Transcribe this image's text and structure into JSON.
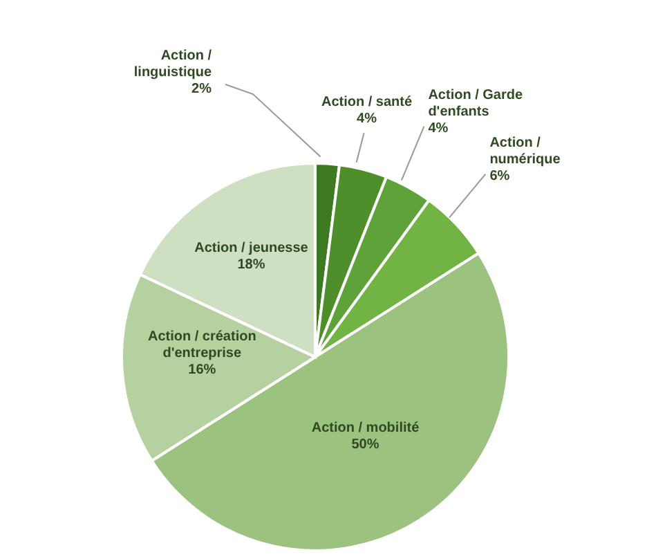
{
  "chart_data": {
    "type": "pie",
    "categories": [
      "Action / linguistique",
      "Action / santé",
      "Action / Garde d'enfants",
      "Action / numérique",
      "Action / mobilité",
      "Action / création d'entreprise",
      "Action / jeunesse"
    ],
    "values": [
      2,
      4,
      4,
      6,
      50,
      16,
      18
    ],
    "value_labels": [
      "2%",
      "4%",
      "4%",
      "6%",
      "50%",
      "16%",
      "18%"
    ],
    "colors": [
      "#3d7a22",
      "#4e8f2c",
      "#5fa23a",
      "#72b443",
      "#9cc27f",
      "#b5d1a0",
      "#cfe0c2"
    ]
  }
}
